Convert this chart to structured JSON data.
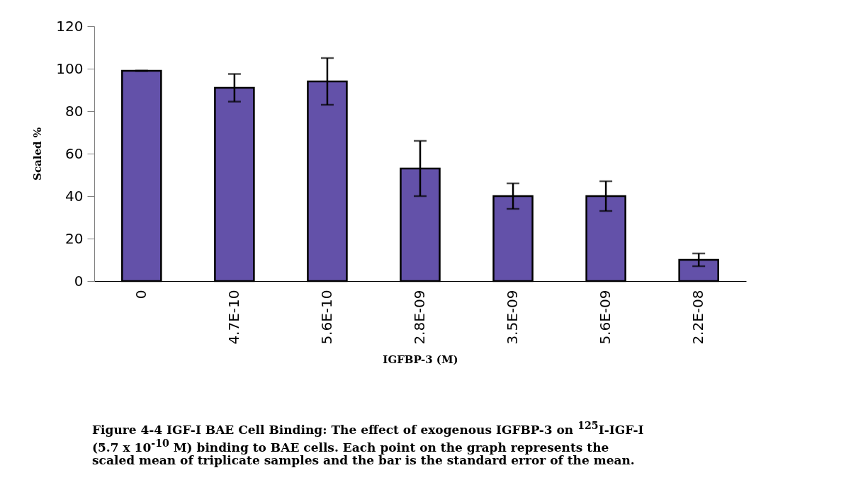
{
  "chart_data": {
    "type": "bar",
    "categories": [
      "0",
      "4.7E-10",
      "5.6E-10",
      "2.8E-09",
      "3.5E-09",
      "5.6E-09",
      "2.2E-08"
    ],
    "values": [
      99,
      91,
      94,
      53,
      40,
      40,
      10
    ],
    "errors": [
      0,
      6.5,
      11,
      13,
      6,
      7,
      3
    ],
    "color": "#6351a9",
    "xlabel": "IGFBP-3 (M)",
    "ylabel": "Scaled %",
    "ylim": [
      0,
      120
    ],
    "yticks": [
      0,
      20,
      40,
      60,
      80,
      100,
      120
    ],
    "annotations": [
      "Figure 4-4  IGF-I BAE Cell Binding: The effect of exogenous IGFBP-3 on $^{125}$I-IGF-I (5.7 x 10$^{-10}$ M)  binding to BAE cells. Each point on the graph represents the scaled mean of triplicate samples and the bar is the standard error of the mean."
    ]
  }
}
